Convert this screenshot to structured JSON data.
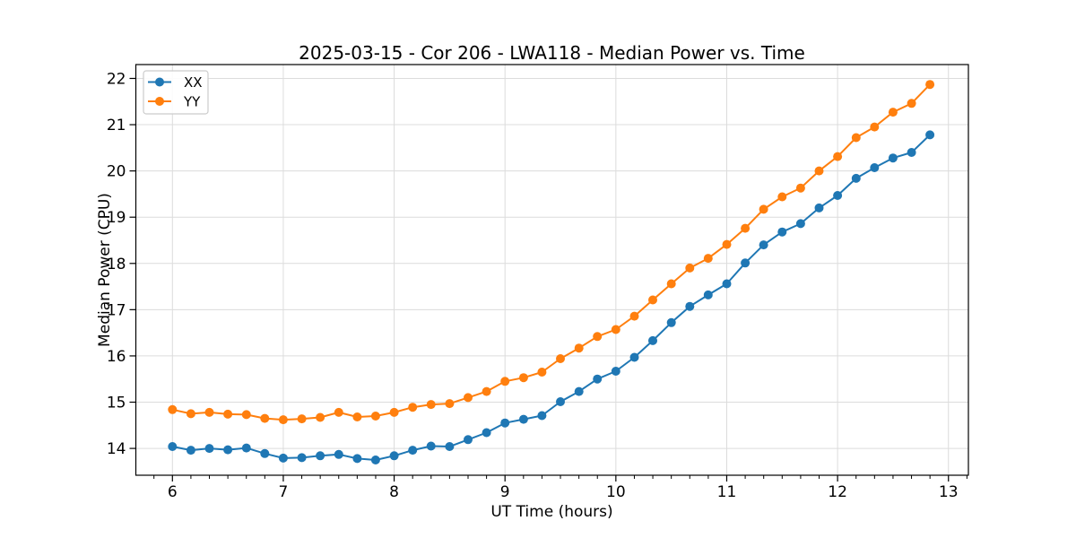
{
  "figure": {
    "title": "2025-03-15 - Cor 206 - LWA118 - Median Power vs. Time"
  },
  "chart_data": {
    "type": "line",
    "title": "2025-03-15 - Cor 206 - LWA118 - Median Power vs. Time",
    "xlabel": "UT Time (hours)",
    "ylabel": "Median Power (CPU)",
    "xlim": [
      5.67,
      13.18
    ],
    "ylim": [
      13.42,
      22.3
    ],
    "xticks": [
      6,
      7,
      8,
      9,
      10,
      11,
      12,
      13
    ],
    "xtick_labels": [
      "6",
      "7",
      "8",
      "9",
      "10",
      "11",
      "12",
      "13"
    ],
    "yticks": [
      14,
      15,
      16,
      17,
      18,
      19,
      20,
      21,
      22
    ],
    "ytick_labels": [
      "14",
      "15",
      "16",
      "17",
      "18",
      "19",
      "20",
      "21",
      "22"
    ],
    "x_minor_step": 0.16667,
    "grid": true,
    "legend": {
      "position": "upper left",
      "entries": [
        "XX",
        "YY"
      ]
    },
    "colors": {
      "series_xx": "#1f77b4",
      "series_yy": "#ff7f0e",
      "grid": "#dcdcdc",
      "spine": "#000000",
      "legend_border": "#cccccc"
    },
    "x": [
      6.0,
      6.167,
      6.333,
      6.5,
      6.667,
      6.833,
      7.0,
      7.167,
      7.333,
      7.5,
      7.667,
      7.833,
      8.0,
      8.167,
      8.333,
      8.5,
      8.667,
      8.833,
      9.0,
      9.167,
      9.333,
      9.5,
      9.667,
      9.833,
      10.0,
      10.167,
      10.333,
      10.5,
      10.667,
      10.833,
      11.0,
      11.167,
      11.333,
      11.5,
      11.667,
      11.833,
      12.0,
      12.167,
      12.333,
      12.5,
      12.667,
      12.833
    ],
    "series": [
      {
        "name": "XX",
        "color": "#1f77b4",
        "values": [
          14.04,
          13.96,
          14.0,
          13.97,
          14.01,
          13.89,
          13.79,
          13.8,
          13.84,
          13.87,
          13.78,
          13.75,
          13.84,
          13.96,
          14.05,
          14.04,
          14.19,
          14.34,
          14.55,
          14.63,
          14.71,
          15.01,
          15.23,
          15.5,
          15.67,
          15.97,
          16.33,
          16.72,
          17.07,
          17.32,
          17.56,
          18.01,
          18.4,
          18.68,
          18.86,
          19.2,
          19.47,
          19.84,
          20.07,
          20.28,
          20.4,
          20.78
        ]
      },
      {
        "name": "YY",
        "color": "#ff7f0e",
        "values": [
          14.84,
          14.75,
          14.78,
          14.74,
          14.73,
          14.65,
          14.62,
          14.64,
          14.67,
          14.78,
          14.68,
          14.7,
          14.78,
          14.89,
          14.95,
          14.97,
          15.1,
          15.23,
          15.45,
          15.53,
          15.65,
          15.94,
          16.17,
          16.42,
          16.57,
          16.86,
          17.21,
          17.56,
          17.9,
          18.11,
          18.41,
          18.76,
          19.17,
          19.44,
          19.63,
          20.0,
          20.31,
          20.72,
          20.95,
          21.27,
          21.46,
          21.87
        ]
      }
    ]
  }
}
